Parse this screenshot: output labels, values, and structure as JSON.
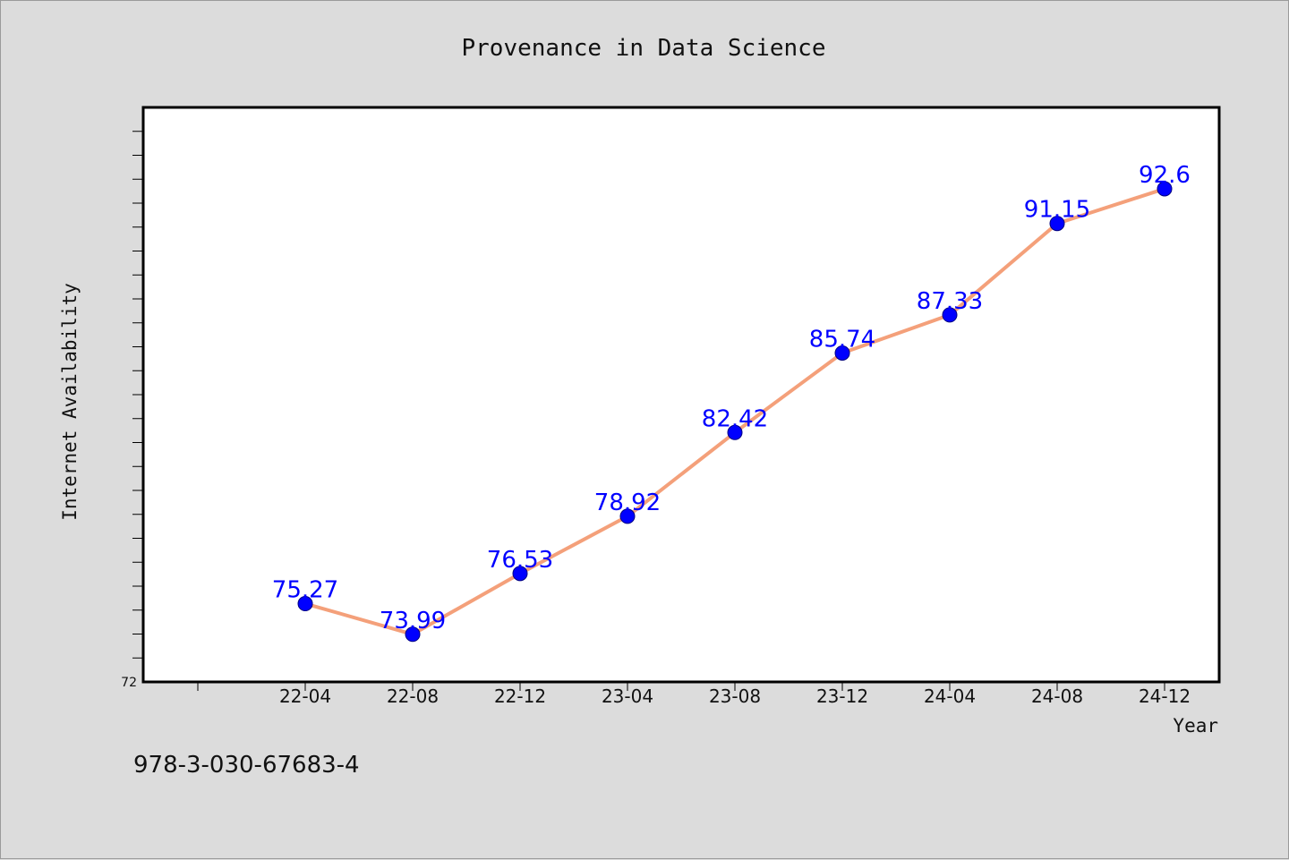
{
  "chart_data": {
    "type": "line",
    "title": "Provenance in Data Science",
    "xlabel": "Year",
    "ylabel": "Internet Availability",
    "categories": [
      "22-04",
      "22-08",
      "22-12",
      "23-04",
      "23-08",
      "23-12",
      "24-04",
      "24-08",
      "24-12"
    ],
    "series": [
      {
        "values": [
          75.27,
          73.99,
          76.53,
          78.92,
          82.42,
          85.74,
          87.33,
          91.15,
          92.6
        ],
        "labels": [
          "75.27",
          "73.99",
          "76.53",
          "78.92",
          "82.42",
          "85.74",
          "87.33",
          "91.15",
          "92.6"
        ]
      }
    ],
    "ylim": [
      72,
      96
    ],
    "y_tick_labels": [
      "72"
    ],
    "grid": false,
    "legend": "none",
    "colors": {
      "line": "#f4a07a",
      "marker": "#0000ff",
      "data_label": "#0000ff",
      "plot_background": "#ffffff",
      "page_background": "#dcdcdc"
    }
  },
  "footnote": "978-3-030-67683-4"
}
